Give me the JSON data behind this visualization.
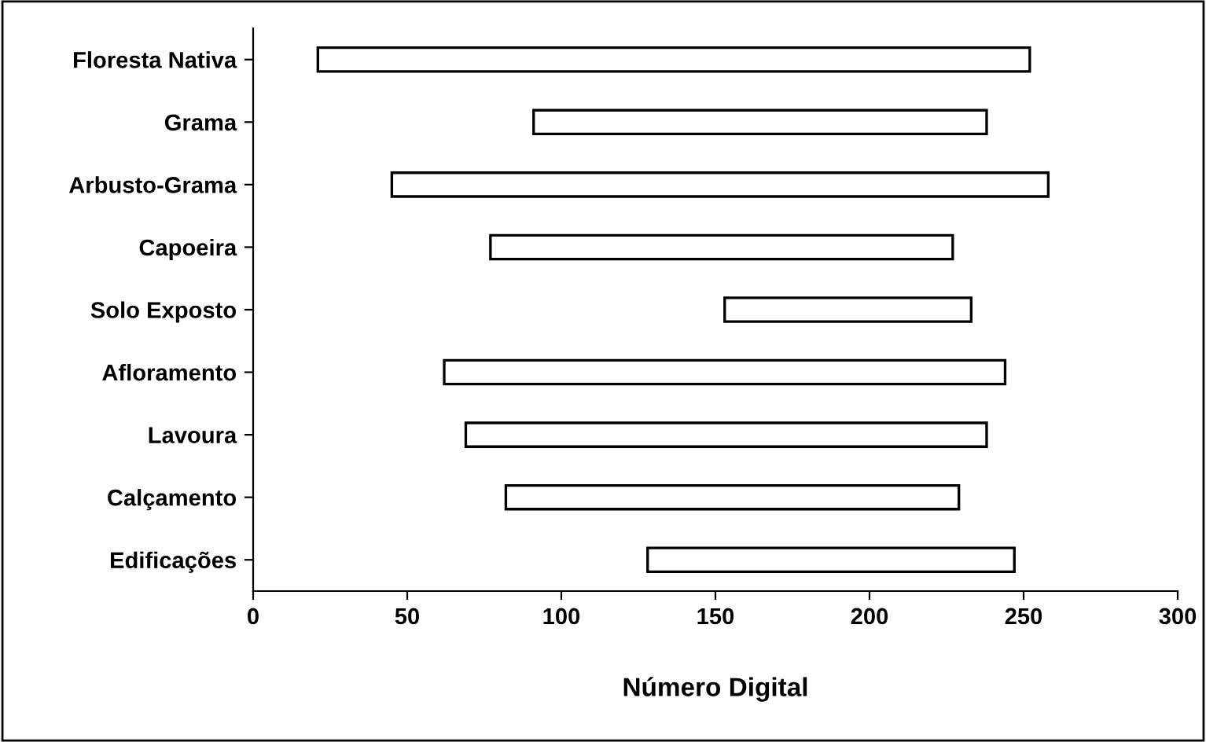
{
  "chart_data": {
    "type": "bar",
    "orientation": "horizontal",
    "categories": [
      "Floresta Nativa",
      "Grama",
      "Arbusto-Grama",
      "Capoeira",
      "Solo Exposto",
      "Afloramento",
      "Lavoura",
      "Calçamento",
      "Edificações"
    ],
    "base": [
      21,
      91,
      45,
      77,
      153,
      62,
      69,
      82,
      128
    ],
    "values": [
      231,
      147,
      213,
      150,
      80,
      182,
      169,
      147,
      119
    ],
    "color": "#ffffff",
    "xlabel": "Número Digital",
    "xlim": [
      0,
      300
    ],
    "xticks": [
      0,
      50,
      100,
      150,
      200,
      250,
      300
    ],
    "grid": false
  }
}
